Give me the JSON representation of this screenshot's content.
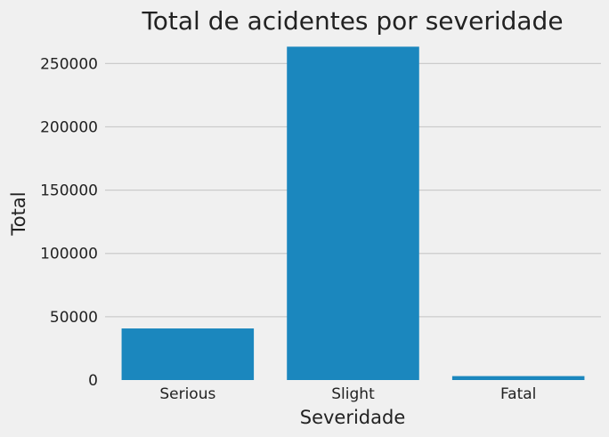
{
  "chart_data": {
    "type": "bar",
    "title": "Total de acidentes por severidade",
    "xlabel": "Severidade",
    "ylabel": "Total",
    "categories": [
      "Serious",
      "Slight",
      "Fatal"
    ],
    "values": [
      40740,
      263280,
      3111
    ],
    "ylim": [
      0,
      265000
    ],
    "yticks": [
      0,
      50000,
      100000,
      150000,
      200000,
      250000
    ],
    "ytick_labels": [
      "0",
      "50000",
      "100000",
      "150000",
      "200000",
      "250000"
    ],
    "grid": "horizontal",
    "bar_color": "#1b87be",
    "background_color": "#f0f0f0"
  }
}
